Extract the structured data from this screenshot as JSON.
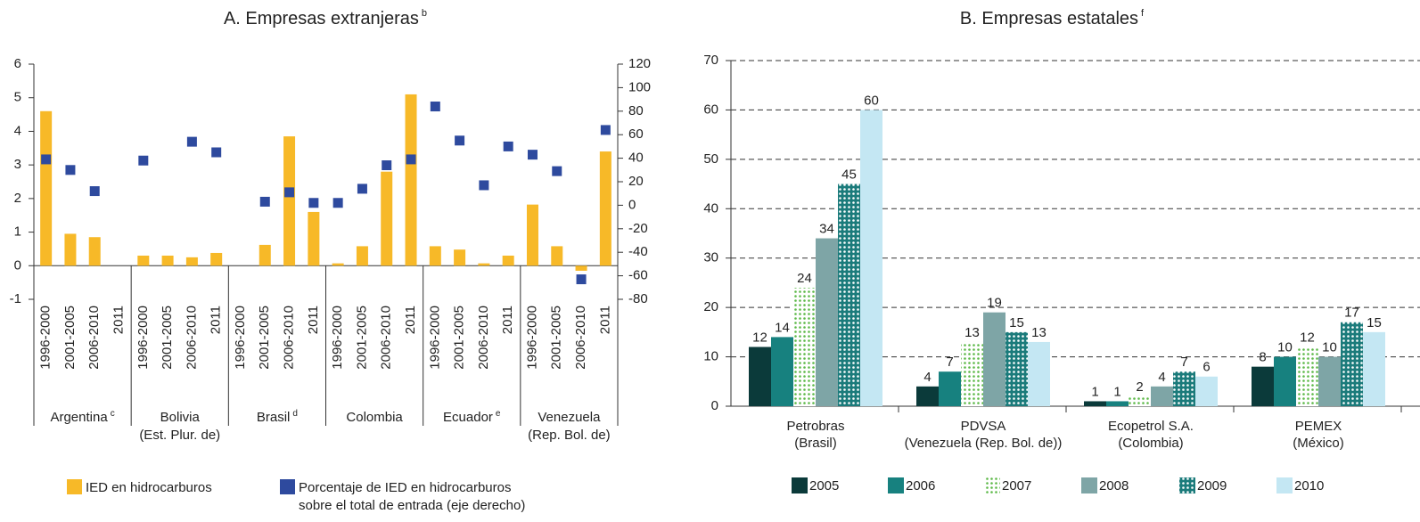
{
  "chart_data": [
    {
      "type": "bar_scatter",
      "title": "A. Empresas extranjeras",
      "title_note": "b",
      "categories": [
        "1996-2000",
        "2001-2005",
        "2006-2010",
        "2011",
        "1996-2000",
        "2001-2005",
        "2006-2010",
        "2011",
        "1996-2000",
        "2001-2005",
        "2006-2010",
        "2011",
        "1996-2000",
        "2001-2005",
        "2006-2010",
        "2011",
        "1996-2000",
        "2001-2005",
        "2006-2010",
        "2011",
        "1996-2000",
        "2001-2005",
        "2006-2010",
        "2011"
      ],
      "groups": [
        {
          "lines": [
            "Argentina"
          ],
          "note": "c"
        },
        {
          "lines": [
            "Bolivia",
            "(Est. Plur. de)"
          ]
        },
        {
          "lines": [
            "Brasil"
          ],
          "note": "d"
        },
        {
          "lines": [
            "Colombia"
          ]
        },
        {
          "lines": [
            "Ecuador"
          ],
          "note": "e"
        },
        {
          "lines": [
            "Venezuela",
            "(Rep. Bol. de)"
          ]
        }
      ],
      "group_size": 4,
      "ylim": [
        -1,
        6
      ],
      "yticks": [
        -1,
        0,
        1,
        2,
        3,
        4,
        5,
        6
      ],
      "y2lim": [
        -80,
        120
      ],
      "y2ticks": [
        -80,
        -60,
        -40,
        -20,
        0,
        20,
        40,
        60,
        80,
        100,
        120
      ],
      "series": [
        {
          "name": [
            "IED en hidrocarburos"
          ],
          "kind": "bar",
          "color": "#f7b928",
          "values": [
            4.6,
            0.95,
            0.85,
            null,
            0.3,
            0.3,
            0.25,
            0.38,
            null,
            0.62,
            3.85,
            1.6,
            0.07,
            0.58,
            2.8,
            5.1,
            0.58,
            0.48,
            0.07,
            0.3,
            1.82,
            0.58,
            -0.15,
            3.4
          ]
        },
        {
          "name": [
            "Porcentaje de IED en hidrocarburos",
            "sobre el total de entrada (eje derecho)"
          ],
          "kind": "scatter",
          "axis": "y2",
          "color": "#2e4a9e",
          "values": [
            39,
            30,
            12,
            null,
            38,
            null,
            54,
            45,
            null,
            3,
            11,
            2,
            2,
            14,
            34,
            39,
            84,
            55,
            17,
            50,
            43,
            29,
            -63,
            64
          ]
        }
      ]
    },
    {
      "type": "grouped_bar",
      "title": "B. Empresas estatales",
      "title_note": "f",
      "categories": [
        [
          "Petrobras",
          "(Brasil)"
        ],
        [
          "PDVSA",
          "(Venezuela (Rep. Bol. de))"
        ],
        [
          "Ecopetrol S.A.",
          "(Colombia)"
        ],
        [
          "PEMEX",
          "(México)"
        ]
      ],
      "ylim": [
        0,
        70
      ],
      "yticks": [
        0,
        10,
        20,
        30,
        40,
        50,
        60,
        70
      ],
      "grid": true,
      "series": [
        {
          "name": "2005",
          "color": "#0b3a3a",
          "values": [
            12,
            4,
            1,
            8
          ]
        },
        {
          "name": "2006",
          "color": "#17817f",
          "values": [
            14,
            7,
            1,
            10
          ]
        },
        {
          "name": "2007",
          "color": "#5cb947",
          "pattern": "dots",
          "values": [
            24,
            13,
            2,
            12
          ]
        },
        {
          "name": "2008",
          "color": "#7ea5a6",
          "values": [
            34,
            19,
            4,
            10
          ]
        },
        {
          "name": "2009",
          "color": "#1b7b7b",
          "pattern": "holes",
          "values": [
            45,
            15,
            7,
            17
          ]
        },
        {
          "name": "2010",
          "color": "#c4e7f3",
          "values": [
            60,
            13,
            6,
            15
          ]
        }
      ]
    }
  ]
}
